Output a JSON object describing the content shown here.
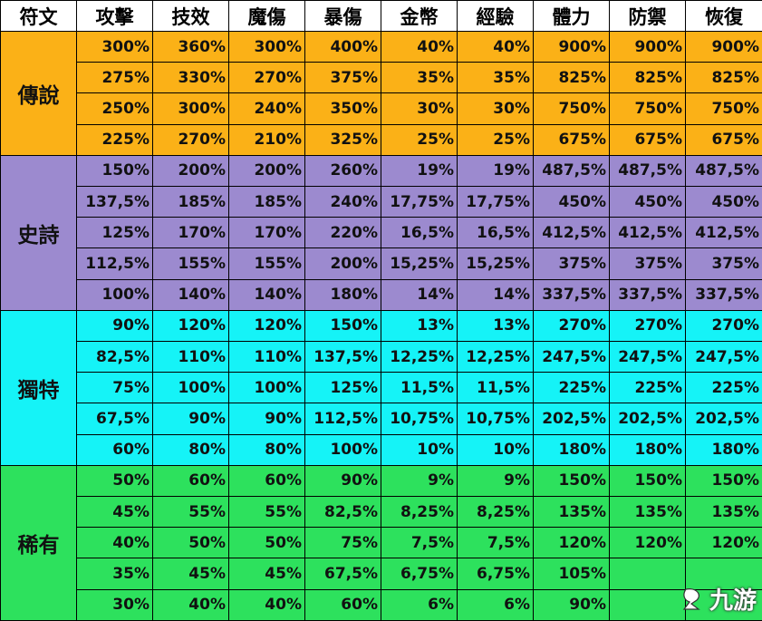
{
  "table": {
    "headers": [
      "符文",
      "攻擊",
      "技效",
      "魔傷",
      "暴傷",
      "金幣",
      "經驗",
      "體力",
      "防禦",
      "恢復"
    ],
    "groups": [
      {
        "name": "傳說",
        "color": "#FBB117",
        "rows": [
          [
            "300%",
            "360%",
            "300%",
            "400%",
            "40%",
            "40%",
            "900%",
            "900%",
            "900%"
          ],
          [
            "275%",
            "330%",
            "270%",
            "375%",
            "35%",
            "35%",
            "825%",
            "825%",
            "825%"
          ],
          [
            "250%",
            "300%",
            "240%",
            "350%",
            "30%",
            "30%",
            "750%",
            "750%",
            "750%"
          ],
          [
            "225%",
            "270%",
            "210%",
            "325%",
            "25%",
            "25%",
            "675%",
            "675%",
            "675%"
          ]
        ]
      },
      {
        "name": "史詩",
        "color": "#9C8ACF",
        "rows": [
          [
            "150%",
            "200%",
            "200%",
            "260%",
            "19%",
            "19%",
            "487,5%",
            "487,5%",
            "487,5%"
          ],
          [
            "137,5%",
            "185%",
            "185%",
            "240%",
            "17,75%",
            "17,75%",
            "450%",
            "450%",
            "450%"
          ],
          [
            "125%",
            "170%",
            "170%",
            "220%",
            "16,5%",
            "16,5%",
            "412,5%",
            "412,5%",
            "412,5%"
          ],
          [
            "112,5%",
            "155%",
            "155%",
            "200%",
            "15,25%",
            "15,25%",
            "375%",
            "375%",
            "375%"
          ],
          [
            "100%",
            "140%",
            "140%",
            "180%",
            "14%",
            "14%",
            "337,5%",
            "337,5%",
            "337,5%"
          ]
        ]
      },
      {
        "name": "獨特",
        "color": "#15F3F7",
        "rows": [
          [
            "90%",
            "120%",
            "120%",
            "150%",
            "13%",
            "13%",
            "270%",
            "270%",
            "270%"
          ],
          [
            "82,5%",
            "110%",
            "110%",
            "137,5%",
            "12,25%",
            "12,25%",
            "247,5%",
            "247,5%",
            "247,5%"
          ],
          [
            "75%",
            "100%",
            "100%",
            "125%",
            "11,5%",
            "11,5%",
            "225%",
            "225%",
            "225%"
          ],
          [
            "67,5%",
            "90%",
            "90%",
            "112,5%",
            "10,75%",
            "10,75%",
            "202,5%",
            "202,5%",
            "202,5%"
          ],
          [
            "60%",
            "80%",
            "80%",
            "100%",
            "10%",
            "10%",
            "180%",
            "180%",
            "180%"
          ]
        ]
      },
      {
        "name": "稀有",
        "color": "#2DE15D",
        "rows": [
          [
            "50%",
            "60%",
            "60%",
            "90%",
            "9%",
            "9%",
            "150%",
            "150%",
            "150%"
          ],
          [
            "45%",
            "55%",
            "55%",
            "82,5%",
            "8,25%",
            "8,25%",
            "135%",
            "135%",
            "135%"
          ],
          [
            "40%",
            "50%",
            "50%",
            "75%",
            "7,5%",
            "7,5%",
            "120%",
            "120%",
            "120%"
          ],
          [
            "35%",
            "45%",
            "45%",
            "67,5%",
            "6,75%",
            "6,75%",
            "105%",
            "",
            ""
          ],
          [
            "30%",
            "40%",
            "40%",
            "60%",
            "6%",
            "6%",
            "90%",
            "",
            ""
          ]
        ]
      }
    ]
  },
  "watermark": {
    "text": "九游",
    "icon": "nine-game-logo-icon"
  }
}
